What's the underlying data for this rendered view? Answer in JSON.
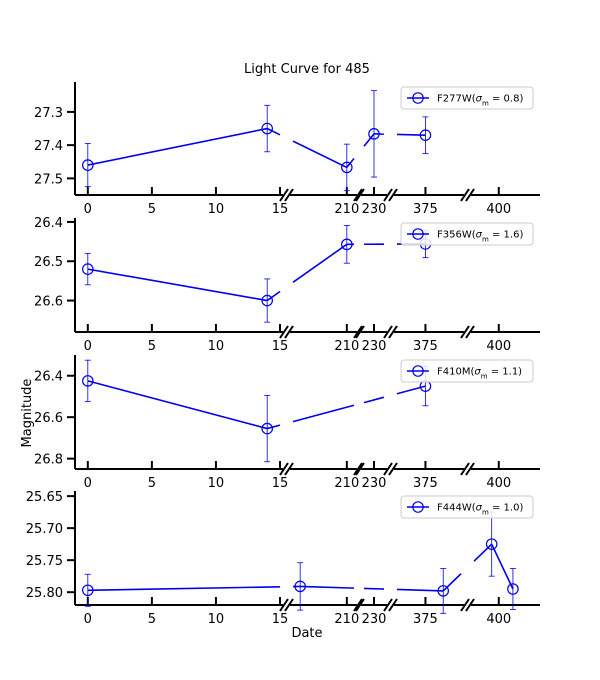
{
  "chart_data": {
    "type": "scatter",
    "title": "Light Curve for 485",
    "xlabel": "Date",
    "ylabel": "Magnitude",
    "y_inverted": true,
    "x_broken_axis": true,
    "segments": [
      {
        "range": [
          -1,
          15
        ],
        "ticks": [
          0,
          5,
          10,
          15
        ]
      },
      {
        "range": [
          195,
          212
        ],
        "ticks": [
          210
        ]
      },
      {
        "range": [
          221,
          239
        ],
        "ticks": [
          230
        ]
      },
      {
        "range": [
          367,
          385
        ],
        "ticks": [
          375
        ]
      },
      {
        "range": [
          393,
          406
        ],
        "ticks": [
          400
        ]
      }
    ],
    "x_tick_labels": [
      "0",
      "5",
      "10",
      "15",
      "210",
      "230",
      "375",
      "400"
    ],
    "color": "#0000ee",
    "legend_position": "upper right",
    "panels": [
      {
        "legend": "F277W($\\sigma_{\\rm m}=0.8$)",
        "legend_label": "F277W",
        "legend_sigma": "0.8",
        "ylim": [
          27.55,
          27.21
        ],
        "yticks": [
          27.3,
          27.4,
          27.5
        ],
        "ytick_labels": [
          "27.3",
          "27.4",
          "27.5"
        ],
        "points": [
          {
            "x": 0,
            "y": 27.46,
            "err": 0.065
          },
          {
            "x": 14,
            "y": 27.35,
            "err": 0.07
          },
          {
            "x": 210,
            "y": 27.467,
            "err": 0.07
          },
          {
            "x": 230,
            "y": 27.366,
            "err": 0.13
          },
          {
            "x": 375,
            "y": 27.37,
            "err": 0.055
          }
        ]
      },
      {
        "legend": "F356W($\\sigma_{\\rm m}=1.6$)",
        "legend_label": "F356W",
        "legend_sigma": "1.6",
        "ylim": [
          26.68,
          26.39
        ],
        "yticks": [
          26.4,
          26.5,
          26.6
        ],
        "ytick_labels": [
          "26.4",
          "26.5",
          "26.6"
        ],
        "points": [
          {
            "x": 0,
            "y": 26.52,
            "err": 0.04
          },
          {
            "x": 14,
            "y": 26.6,
            "err": 0.055
          },
          {
            "x": 210,
            "y": 26.457,
            "err": 0.048
          },
          {
            "x": 375,
            "y": 26.456,
            "err": 0.035
          }
        ]
      },
      {
        "legend": "F410M($\\sigma_{\\rm m}=1.1$)",
        "legend_label": "F410M",
        "legend_sigma": "1.1",
        "ylim": [
          26.85,
          26.3
        ],
        "yticks": [
          26.4,
          26.6,
          26.8
        ],
        "ytick_labels": [
          "26.4",
          "26.6",
          "26.8"
        ],
        "points": [
          {
            "x": 0,
            "y": 26.425,
            "err": 0.1
          },
          {
            "x": 14,
            "y": 26.655,
            "err": 0.16
          },
          {
            "x": 375,
            "y": 26.45,
            "err": 0.095
          }
        ]
      },
      {
        "legend": "F444W($\\sigma_{\\rm m}=1.0$)",
        "legend_label": "F444W",
        "legend_sigma": "1.0",
        "ylim": [
          25.82,
          25.642
        ],
        "yticks": [
          25.65,
          25.7,
          25.75,
          25.8
        ],
        "ytick_labels": [
          "25.65",
          "25.70",
          "25.75",
          "25.80"
        ],
        "points": [
          {
            "x": 0,
            "y": 25.797,
            "err": 0.025
          },
          {
            "x": 197,
            "y": 25.791,
            "err": 0.037
          },
          {
            "x": 380,
            "y": 25.798,
            "err": 0.035
          },
          {
            "x": 398,
            "y": 25.725,
            "err": 0.05
          },
          {
            "x": 404,
            "y": 25.795,
            "err": 0.032
          }
        ]
      }
    ]
  }
}
